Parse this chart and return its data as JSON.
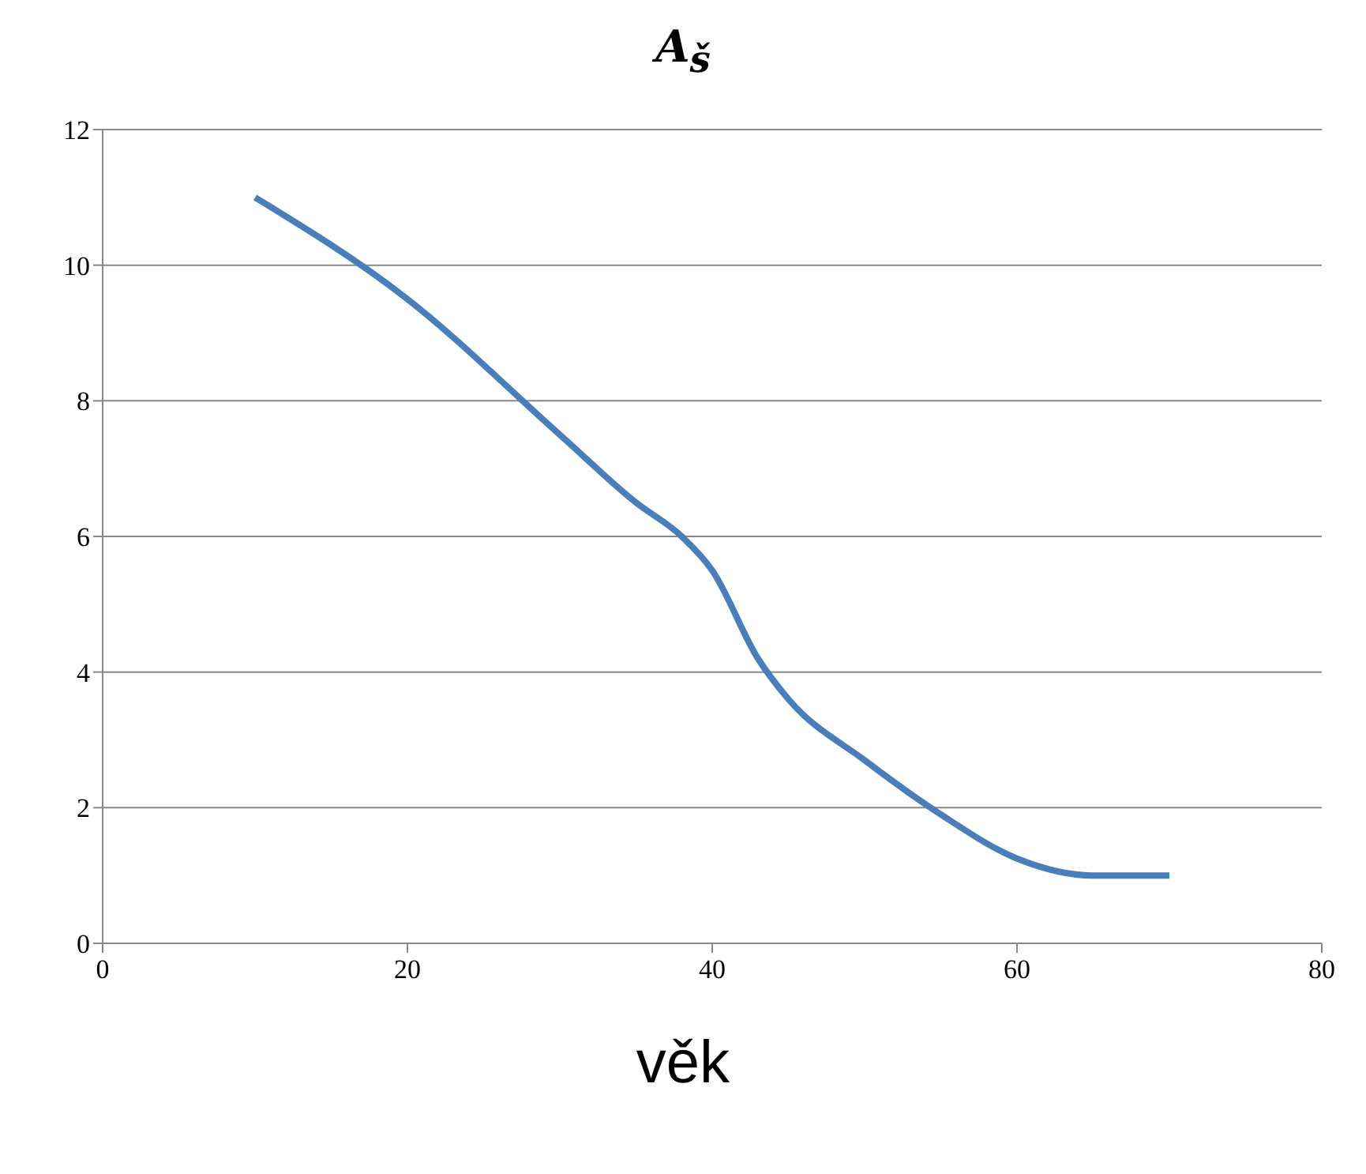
{
  "chart_data": {
    "type": "line",
    "title": "A$_{š}$",
    "xlabel": "věk",
    "x": [
      10,
      20,
      30,
      35,
      38,
      40,
      43,
      45,
      50,
      55,
      60,
      65,
      70
    ],
    "series": [
      {
        "color": "#4a7ebb",
        "values": [
          11,
          9.5,
          7.5,
          6.5,
          6,
          5.5,
          4.2,
          3.6,
          2.7,
          1.9,
          1.25,
          1,
          1
        ]
      }
    ],
    "xlim": [
      0,
      80
    ],
    "xticks": [
      0,
      20,
      40,
      60,
      80
    ],
    "ylim": [
      0,
      12
    ],
    "yticks": [
      0,
      2,
      4,
      6,
      8,
      10,
      12
    ],
    "grid": "y",
    "legend": false,
    "marker": "none",
    "line_style": "solid"
  }
}
